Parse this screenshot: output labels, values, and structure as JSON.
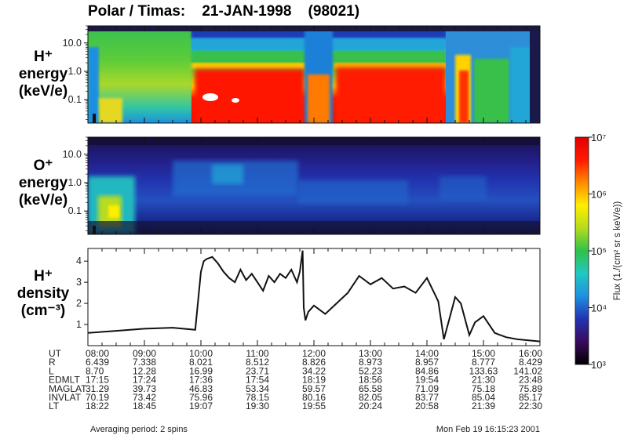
{
  "title": "Polar / Timas:    21-JAN-1998    (98021)",
  "panels": [
    {
      "label": [
        "H⁺",
        "energy",
        "(keV/e)"
      ],
      "y_ticks": [
        "10.0",
        "1.0",
        "0.1"
      ]
    },
    {
      "label": [
        "O⁺",
        "energy",
        "(keV/e)"
      ],
      "y_ticks": [
        "10.0",
        "1.0",
        "0.1"
      ]
    },
    {
      "label": [
        "H⁺",
        "density",
        "(cm⁻³)"
      ],
      "y_ticks": [
        "4",
        "3",
        "2",
        "1"
      ]
    }
  ],
  "ephemeris_labels": [
    "UT",
    "R",
    "L",
    "EDMLT",
    "MAGLAT",
    "INVLAT",
    "LT"
  ],
  "ephemeris_columns": [
    [
      "08:00",
      "6.439",
      "8.70",
      "17:15",
      "31.29",
      "70.19",
      "18:22"
    ],
    [
      "09:00",
      "7.338",
      "12.28",
      "17:24",
      "39.73",
      "73.42",
      "18:45"
    ],
    [
      "10:00",
      "8.021",
      "16.99",
      "17:36",
      "46.83",
      "75.96",
      "19:07"
    ],
    [
      "11:00",
      "8.512",
      "23.71",
      "17:54",
      "53.34",
      "78.15",
      "19:30"
    ],
    [
      "12:00",
      "8.826",
      "34.22",
      "18:19",
      "59.57",
      "80.16",
      "19:55"
    ],
    [
      "13:00",
      "8.973",
      "52.23",
      "18:56",
      "65.58",
      "82.05",
      "20:24"
    ],
    [
      "14:00",
      "8.957",
      "84.86",
      "19:54",
      "71.09",
      "83.77",
      "20:58"
    ],
    [
      "15:00",
      "8.777",
      "133.63",
      "21:30",
      "75.18",
      "85.04",
      "21:39"
    ],
    [
      "16:00",
      "8.429",
      "141.02",
      "23:48",
      "75.89",
      "85.17",
      "22:30"
    ]
  ],
  "footer_left": "Averaging period: 2 spins",
  "footer_right": "Mon Feb 19 16:15:23 2001",
  "colorbar": {
    "label": "Flux (1./(cm² sr s keV/e))",
    "ticks": [
      "10⁷",
      "10⁶",
      "10⁵",
      "10⁴",
      "10³"
    ],
    "colors": [
      "#000000",
      "#3a0a5e",
      "#2233b0",
      "#1e8fe0",
      "#22c8c0",
      "#2ec24a",
      "#b4dc1c",
      "#ffee00",
      "#ff8a00",
      "#ff1a00",
      "#e00000"
    ]
  },
  "chart_data": [
    {
      "type": "heatmap",
      "title": "H⁺ energy",
      "xlabel": "UT",
      "x_ticks": [
        "08:00",
        "09:00",
        "10:00",
        "11:00",
        "12:00",
        "13:00",
        "14:00",
        "15:00",
        "16:00"
      ],
      "ylabel": "energy (keV/e)",
      "yscale": "log",
      "ylim": [
        0.015,
        40
      ],
      "color_scale": "log",
      "clim": [
        1000,
        10000000
      ],
      "colors_hint": "green/yellow 08:00-10:00, red core 0.05-1 keV 10:00-15:00, blue above 5 keV"
    },
    {
      "type": "heatmap",
      "title": "O⁺ energy",
      "xlabel": "UT",
      "ylabel": "energy (keV/e)",
      "yscale": "log",
      "ylim": [
        0.015,
        40
      ],
      "color_scale": "log",
      "clim": [
        1000,
        10000000
      ],
      "colors_hint": "mostly dark blue/purple, cyan patches near 1 keV, green/yellow patch 08:00-08:40 below 0.2 keV"
    },
    {
      "type": "line",
      "title": "H⁺ density",
      "xlabel": "UT",
      "ylabel": "density (cm⁻³)",
      "ylim": [
        0,
        4.6
      ],
      "x": [
        8.0,
        8.5,
        9.0,
        9.5,
        9.9,
        10.0,
        10.05,
        10.1,
        10.2,
        10.3,
        10.4,
        10.5,
        10.6,
        10.7,
        10.8,
        10.9,
        11.0,
        11.1,
        11.2,
        11.3,
        11.4,
        11.5,
        11.6,
        11.7,
        11.75,
        11.8,
        11.82,
        11.85,
        11.9,
        12.0,
        12.2,
        12.4,
        12.6,
        12.8,
        13.0,
        13.2,
        13.4,
        13.6,
        13.8,
        14.0,
        14.2,
        14.3,
        14.5,
        14.6,
        14.75,
        14.85,
        15.0,
        15.2,
        15.4,
        15.6,
        15.8,
        16.0
      ],
      "y": [
        0.6,
        0.7,
        0.8,
        0.85,
        0.75,
        3.5,
        4.0,
        4.1,
        4.2,
        3.9,
        3.5,
        3.2,
        3.0,
        3.6,
        3.1,
        3.4,
        3.0,
        2.6,
        3.3,
        3.0,
        3.4,
        3.2,
        3.6,
        3.0,
        3.5,
        4.5,
        1.8,
        1.2,
        1.6,
        1.9,
        1.5,
        2.0,
        2.5,
        3.3,
        2.9,
        3.2,
        2.7,
        2.8,
        2.5,
        3.2,
        2.1,
        0.3,
        2.3,
        2.0,
        0.5,
        1.1,
        1.4,
        0.6,
        0.4,
        0.3,
        0.25,
        0.2
      ]
    }
  ]
}
